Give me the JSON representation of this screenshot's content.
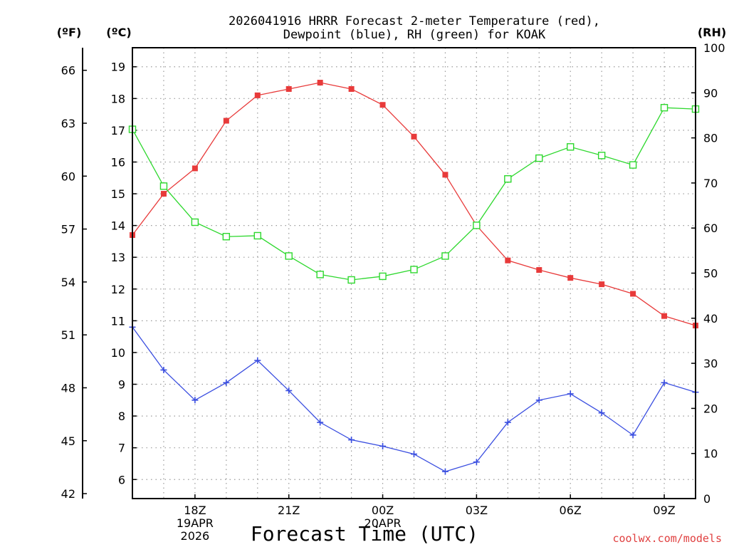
{
  "chart_data": {
    "type": "line",
    "title_line1": "2026041916 HRRR Forecast 2-meter Temperature (red),",
    "title_line2": "Dewpoint (blue), RH (green) for KOAK",
    "unit_f": "(ºF)",
    "unit_c": "(ºC)",
    "unit_rh": "(RH)",
    "xlabel": "Forecast Time (UTC)",
    "credit": "coolwx.com/models",
    "x_hours": [
      16,
      17,
      18,
      19,
      20,
      21,
      22,
      23,
      24,
      25,
      26,
      27,
      28,
      29,
      30,
      31,
      32,
      33,
      34
    ],
    "x_tick_labels": [
      {
        "hour": 18,
        "lines": [
          "18Z",
          "19APR",
          "2026"
        ]
      },
      {
        "hour": 21,
        "lines": [
          "21Z"
        ]
      },
      {
        "hour": 24,
        "lines": [
          "00Z",
          "20APR"
        ]
      },
      {
        "hour": 27,
        "lines": [
          "03Z"
        ]
      },
      {
        "hour": 30,
        "lines": [
          "06Z"
        ]
      },
      {
        "hour": 33,
        "lines": [
          "09Z"
        ]
      }
    ],
    "c_axis": {
      "min": 5.4,
      "max": 19.6,
      "ticks": [
        6,
        7,
        8,
        9,
        10,
        11,
        12,
        13,
        14,
        15,
        16,
        17,
        18,
        19
      ]
    },
    "f_ticks": [
      42,
      45,
      48,
      51,
      54,
      57,
      60,
      63,
      66
    ],
    "rh_axis": {
      "min": 0,
      "max": 100,
      "ticks": [
        0,
        10,
        20,
        30,
        40,
        50,
        60,
        70,
        80,
        90,
        100
      ]
    },
    "series": [
      {
        "name": "2-meter Temperature",
        "units": "C",
        "color": "#e83a3a",
        "marker": "filled-square",
        "values": [
          13.7,
          15.0,
          15.8,
          17.3,
          18.1,
          18.3,
          18.5,
          18.3,
          17.8,
          16.8,
          15.6,
          14.0,
          12.9,
          12.6,
          12.35,
          12.15,
          11.85,
          11.15,
          10.85
        ]
      },
      {
        "name": "Dewpoint",
        "units": "C",
        "color": "#3a4ee0",
        "marker": "plus",
        "values": [
          10.8,
          9.45,
          8.5,
          9.05,
          9.75,
          8.8,
          7.8,
          7.25,
          7.05,
          6.8,
          6.25,
          6.55,
          7.8,
          8.5,
          8.7,
          8.1,
          7.4,
          9.05,
          8.75
        ]
      },
      {
        "name": "Relative Humidity",
        "units": "%",
        "color": "#2ed82e",
        "marker": "open-square",
        "values": [
          81.9,
          69.3,
          61.3,
          58.1,
          58.3,
          53.8,
          49.7,
          48.5,
          49.3,
          50.8,
          53.8,
          60.6,
          70.9,
          75.5,
          78.0,
          76.1,
          74.0,
          86.7,
          86.4
        ]
      }
    ]
  }
}
